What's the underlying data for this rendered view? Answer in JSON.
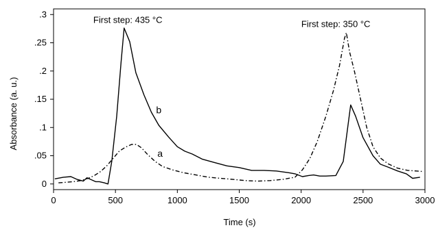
{
  "chart_data": {
    "type": "line",
    "title": "",
    "xlabel": "Time (s)",
    "ylabel": "Absorbance (a. u.)",
    "xlim": [
      0,
      3000
    ],
    "ylim": [
      -0.01,
      0.31
    ],
    "x_ticks": [
      {
        "value": 0,
        "label": "0"
      },
      {
        "value": 500,
        "label": "500"
      },
      {
        "value": 1000,
        "label": "1000"
      },
      {
        "value": 1500,
        "label": "1500"
      },
      {
        "value": 2000,
        "label": "2000"
      },
      {
        "value": 2500,
        "label": "2500"
      },
      {
        "value": 3000,
        "label": "3000"
      }
    ],
    "y_ticks": [
      {
        "value": 0,
        "label": "0"
      },
      {
        "value": 0.05,
        "label": ".05"
      },
      {
        "value": 0.1,
        "label": ".1"
      },
      {
        "value": 0.15,
        "label": ".15"
      },
      {
        "value": 0.2,
        "label": ".2"
      },
      {
        "value": 0.25,
        "label": ".25"
      },
      {
        "value": 0.3,
        "label": ".3"
      }
    ],
    "grid": false,
    "series": [
      {
        "name": "b",
        "style": "solid",
        "color": "#000000",
        "points": [
          [
            10,
            0.009
          ],
          [
            80,
            0.012
          ],
          [
            140,
            0.013
          ],
          [
            190,
            0.008
          ],
          [
            240,
            0.005
          ],
          [
            270,
            0.011
          ],
          [
            300,
            0.008
          ],
          [
            340,
            0.004
          ],
          [
            370,
            0.004
          ],
          [
            410,
            0.002
          ],
          [
            440,
            0.0
          ],
          [
            470,
            0.04
          ],
          [
            510,
            0.12
          ],
          [
            545,
            0.215
          ],
          [
            570,
            0.276
          ],
          [
            615,
            0.252
          ],
          [
            665,
            0.197
          ],
          [
            730,
            0.158
          ],
          [
            790,
            0.127
          ],
          [
            850,
            0.104
          ],
          [
            930,
            0.083
          ],
          [
            1000,
            0.066
          ],
          [
            1060,
            0.058
          ],
          [
            1120,
            0.053
          ],
          [
            1200,
            0.044
          ],
          [
            1300,
            0.038
          ],
          [
            1400,
            0.032
          ],
          [
            1500,
            0.029
          ],
          [
            1600,
            0.024
          ],
          [
            1700,
            0.024
          ],
          [
            1800,
            0.023
          ],
          [
            1900,
            0.02
          ],
          [
            1950,
            0.018
          ],
          [
            2010,
            0.013
          ],
          [
            2060,
            0.015
          ],
          [
            2100,
            0.016
          ],
          [
            2150,
            0.014
          ],
          [
            2200,
            0.014
          ],
          [
            2280,
            0.015
          ],
          [
            2340,
            0.04
          ],
          [
            2370,
            0.09
          ],
          [
            2400,
            0.14
          ],
          [
            2440,
            0.12
          ],
          [
            2500,
            0.082
          ],
          [
            2580,
            0.05
          ],
          [
            2640,
            0.035
          ],
          [
            2700,
            0.03
          ],
          [
            2780,
            0.023
          ],
          [
            2850,
            0.018
          ],
          [
            2900,
            0.01
          ],
          [
            2960,
            0.012
          ]
        ]
      },
      {
        "name": "a",
        "style": "dashdot",
        "color": "#000000",
        "points": [
          [
            40,
            0.002
          ],
          [
            100,
            0.003
          ],
          [
            160,
            0.004
          ],
          [
            220,
            0.006
          ],
          [
            280,
            0.01
          ],
          [
            330,
            0.015
          ],
          [
            380,
            0.022
          ],
          [
            430,
            0.032
          ],
          [
            480,
            0.045
          ],
          [
            530,
            0.058
          ],
          [
            580,
            0.065
          ],
          [
            630,
            0.07
          ],
          [
            670,
            0.07
          ],
          [
            710,
            0.064
          ],
          [
            760,
            0.052
          ],
          [
            820,
            0.04
          ],
          [
            880,
            0.031
          ],
          [
            960,
            0.025
          ],
          [
            1050,
            0.02
          ],
          [
            1150,
            0.016
          ],
          [
            1250,
            0.012
          ],
          [
            1350,
            0.01
          ],
          [
            1450,
            0.008
          ],
          [
            1550,
            0.006
          ],
          [
            1650,
            0.005
          ],
          [
            1750,
            0.006
          ],
          [
            1850,
            0.008
          ],
          [
            1950,
            0.012
          ],
          [
            2010,
            0.025
          ],
          [
            2070,
            0.045
          ],
          [
            2130,
            0.075
          ],
          [
            2200,
            0.12
          ],
          [
            2260,
            0.165
          ],
          [
            2310,
            0.21
          ],
          [
            2350,
            0.258
          ],
          [
            2365,
            0.268
          ],
          [
            2390,
            0.235
          ],
          [
            2430,
            0.2
          ],
          [
            2480,
            0.15
          ],
          [
            2530,
            0.1
          ],
          [
            2580,
            0.066
          ],
          [
            2640,
            0.046
          ],
          [
            2700,
            0.036
          ],
          [
            2780,
            0.028
          ],
          [
            2860,
            0.024
          ],
          [
            2930,
            0.023
          ],
          [
            2990,
            0.022
          ]
        ]
      }
    ],
    "annotations": [
      {
        "text": "First step: 435 °C",
        "x": 600,
        "y": 0.285
      },
      {
        "text": "First step: 350 °C",
        "x": 2280,
        "y": 0.278
      }
    ],
    "curve_labels": [
      {
        "text": "b",
        "x": 850,
        "y": 0.125
      },
      {
        "text": "a",
        "x": 860,
        "y": 0.048
      }
    ]
  }
}
